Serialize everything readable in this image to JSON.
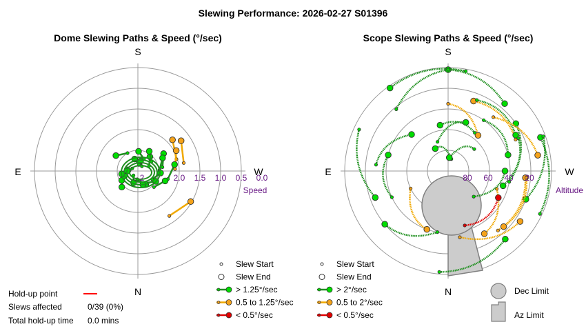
{
  "title": "Slewing Performance: 2026-02-27 S01396",
  "chart_data": [
    {
      "type": "polar-scatter",
      "title": "Dome Slewing Paths & Speed (°/sec)",
      "cardinals": {
        "top": "S",
        "bottom": "N",
        "left": "E",
        "right": "W"
      },
      "radial_axis": {
        "label": "Speed",
        "ticks": [
          "2.0",
          "1.5",
          "1.0",
          "0.5",
          "0.0"
        ],
        "inner_label": "2"
      },
      "slews": [
        {
          "az": 48,
          "r": 0.45,
          "cat": "mid"
        },
        {
          "az": 55,
          "r": 0.51,
          "cat": "mid"
        },
        {
          "az": 56,
          "r": 0.3,
          "cat": "fast"
        },
        {
          "az": 62,
          "r": 0.27,
          "cat": "fast"
        },
        {
          "az": 62,
          "r": 0.42,
          "cat": "mid"
        },
        {
          "az": 40,
          "r": 0.18,
          "cat": "fast"
        },
        {
          "az": 30,
          "r": 0.22,
          "cat": "fast"
        },
        {
          "az": 15,
          "r": 0.1,
          "cat": "fast"
        },
        {
          "az": 2,
          "r": 0.19,
          "cat": "fast"
        },
        {
          "az": 345,
          "r": 0.12,
          "cat": "fast"
        },
        {
          "az": 305,
          "r": 0.26,
          "cat": "fast"
        },
        {
          "az": 80,
          "r": 0.36,
          "cat": "fast"
        },
        {
          "az": 95,
          "r": 0.22,
          "cat": "fast"
        },
        {
          "az": 110,
          "r": 0.28,
          "cat": "fast"
        },
        {
          "az": 120,
          "r": 0.2,
          "cat": "fast"
        },
        {
          "az": 150,
          "r": 0.15,
          "cat": "fast"
        },
        {
          "az": 160,
          "r": 0.14,
          "cat": "fast"
        },
        {
          "az": 200,
          "r": 0.12,
          "cat": "fast"
        },
        {
          "az": 225,
          "r": 0.22,
          "cat": "fast"
        },
        {
          "az": 240,
          "r": 0.18,
          "cat": "fast"
        },
        {
          "az": 250,
          "r": 0.14,
          "cat": "fast"
        },
        {
          "az": 260,
          "r": 0.16,
          "cat": "fast"
        },
        {
          "az": 270,
          "r": 0.1,
          "cat": "fast"
        },
        {
          "az": 120,
          "r": 0.59,
          "cat": "mid"
        }
      ],
      "legend": [
        {
          "label": "Slew Start",
          "kind": "start"
        },
        {
          "label": "Slew End",
          "kind": "end"
        },
        {
          "label": "> 1.25°/sec",
          "kind": "fast"
        },
        {
          "label": "0.5 to 1.25°/sec",
          "kind": "mid"
        },
        {
          "label": "< 0.5°/sec",
          "kind": "slow"
        }
      ]
    },
    {
      "type": "polar-scatter",
      "title": "Scope Slewing Paths & Speed (°/sec)",
      "cardinals": {
        "top": "S",
        "bottom": "N",
        "left": "E",
        "right": "W"
      },
      "radial_axis": {
        "label": "Altitude",
        "ticks": [
          "80",
          "60",
          "40",
          "20"
        ]
      },
      "slews": [
        {
          "az": 0,
          "r": 0.98,
          "cat": "fast"
        },
        {
          "az": 325,
          "r": 0.98,
          "cat": "fast"
        },
        {
          "az": 315,
          "r": 0.5,
          "cat": "fast"
        },
        {
          "az": 330,
          "r": 0.25,
          "cat": "fast"
        },
        {
          "az": 285,
          "r": 0.6,
          "cat": "fast"
        },
        {
          "az": 250,
          "r": 0.75,
          "cat": "fast"
        },
        {
          "az": 230,
          "r": 0.8,
          "cat": "fast"
        },
        {
          "az": 20,
          "r": 0.72,
          "cat": "mid"
        },
        {
          "az": 40,
          "r": 0.85,
          "cat": "fast"
        },
        {
          "az": 55,
          "r": 0.8,
          "cat": "fast"
        },
        {
          "az": 62,
          "r": 0.74,
          "cat": "fast"
        },
        {
          "az": 70,
          "r": 0.95,
          "cat": "fast"
        },
        {
          "az": 80,
          "r": 0.88,
          "cat": "mid"
        },
        {
          "az": 95,
          "r": 0.75,
          "cat": "mid"
        },
        {
          "az": 110,
          "r": 0.8,
          "cat": "fast"
        },
        {
          "az": 125,
          "r": 0.85,
          "cat": "mid"
        },
        {
          "az": 135,
          "r": 0.76,
          "cat": "mid"
        },
        {
          "az": 140,
          "r": 0.86,
          "cat": "fast"
        },
        {
          "az": 150,
          "r": 0.7,
          "cat": "mid"
        },
        {
          "az": 118,
          "r": 0.55,
          "cat": "slow"
        },
        {
          "az": 105,
          "r": 0.55,
          "cat": "fast"
        },
        {
          "az": 90,
          "r": 0.55,
          "cat": "fast"
        },
        {
          "az": 75,
          "r": 0.6,
          "cat": "fast"
        },
        {
          "az": 5,
          "r": 0.13,
          "cat": "fast"
        },
        {
          "az": 20,
          "r": 0.5,
          "cat": "fast"
        },
        {
          "az": 350,
          "r": 0.45,
          "cat": "fast"
        },
        {
          "az": 40,
          "r": 0.45,
          "cat": "mid"
        },
        {
          "az": 200,
          "r": 0.6,
          "cat": "mid"
        }
      ],
      "limits": {
        "dec": "Dec Limit",
        "az": "Az Limit"
      },
      "legend": [
        {
          "label": "Slew Start",
          "kind": "start"
        },
        {
          "label": "Slew End",
          "kind": "end"
        },
        {
          "label": "> 2°/sec",
          "kind": "fast"
        },
        {
          "label": "0.5 to 2°/sec",
          "kind": "mid"
        },
        {
          "label": "< 0.5°/sec",
          "kind": "slow"
        }
      ]
    }
  ],
  "holdup": {
    "point_label": "Hold-up point",
    "slews_label": "Slews affected",
    "slews_value": "0/39 (0%)",
    "time_label": "Total hold-up time",
    "time_value": "0.0 mins",
    "line_color": "#ff0000"
  },
  "colors": {
    "fast": "#00dd00",
    "mid": "#f5a31a",
    "slow": "#e00000",
    "fast_line": "#1f8f1f",
    "mid_line": "#f0a800",
    "slow_line": "#e00000"
  }
}
